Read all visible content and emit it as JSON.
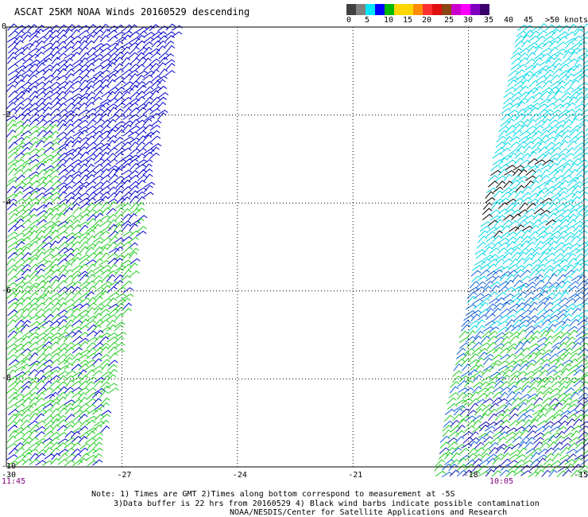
{
  "title": "ASCAT 25KM NOAA Winds 20160529 descending",
  "legend": {
    "colors": [
      "#000000",
      "#ffff00",
      "#00e5ff",
      "#0000ff",
      "#00b800",
      "#ffd700",
      "#ff8c00",
      "#ff0000",
      "#8b4513",
      "#ff00ff",
      "#4b0082"
    ],
    "segment_colors": [
      "#404040",
      "#808080",
      "#00e5ff",
      "#0000ff",
      "#00b800",
      "#ffd700",
      "#ffd700",
      "#ff8c00",
      "#ff3030",
      "#e01010",
      "#8b4513",
      "#cc00cc",
      "#ff00ff",
      "#8000c0",
      "#3a006b"
    ],
    "labels": [
      "0",
      "5",
      "10",
      "15",
      "20",
      "25",
      "30",
      "35",
      "40",
      "45",
      ">50 knots"
    ]
  },
  "axes": {
    "x_ticks": [
      "-30",
      "-27",
      "-24",
      "-21",
      "-18",
      "-15"
    ],
    "y_ticks": [
      "0",
      "-2",
      "-4",
      "-6",
      "-8",
      "-10"
    ]
  },
  "times": {
    "left": "11:45",
    "right": "10:05"
  },
  "notes": {
    "line1": "Note: 1) Times are GMT 2)Times along bottom correspond to measurement at -5S",
    "line2": "3)Data buffer is 22 hrs from 20160529 4) Black wind barbs indicate possible contamination",
    "line3": "NOAA/NESDIS/Center for Satellite Applications and Research"
  },
  "map": {
    "lon_range": [
      -30,
      -15
    ],
    "lat_range": [
      -10,
      0
    ]
  }
}
